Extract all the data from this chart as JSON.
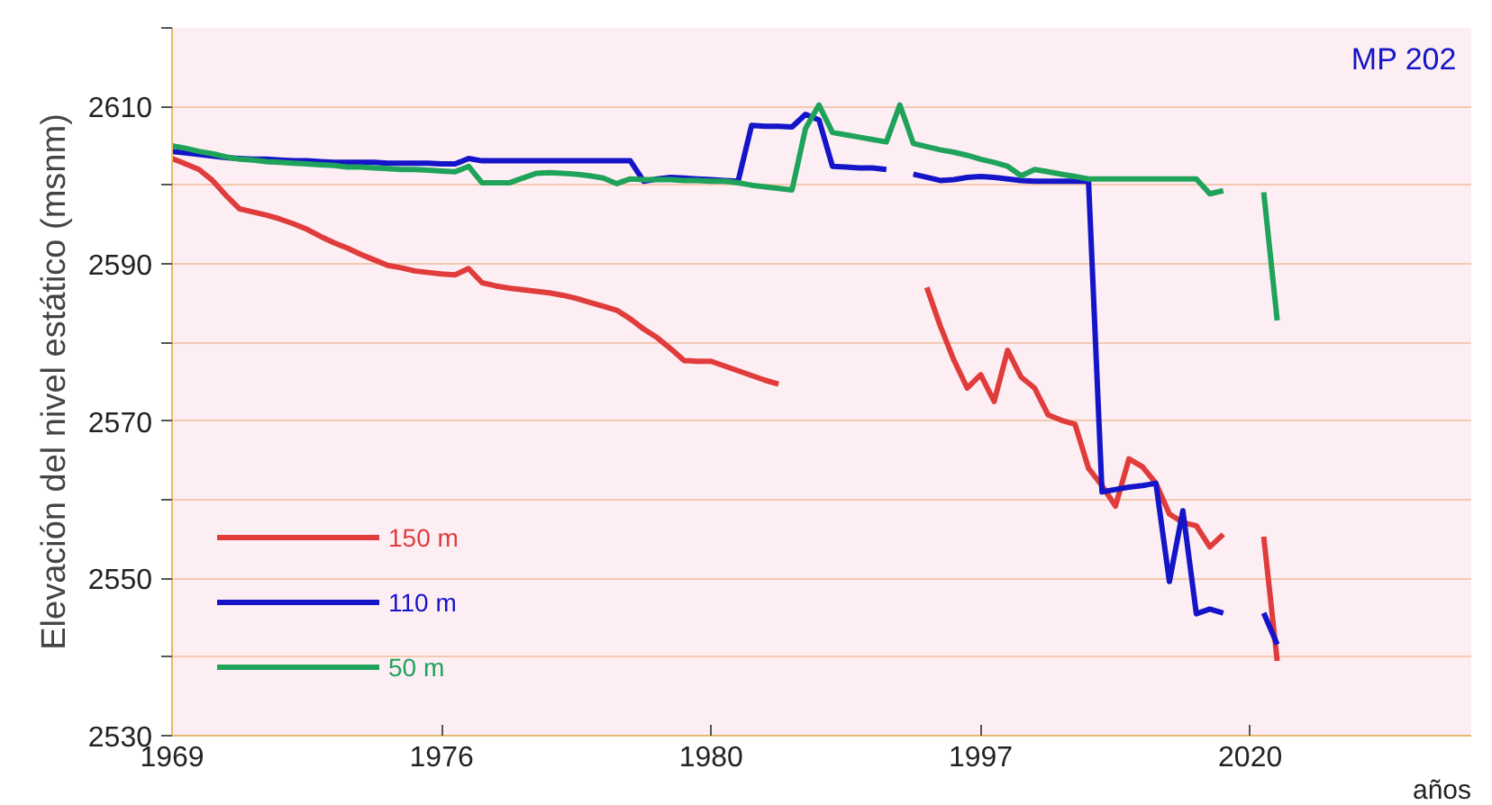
{
  "chart_data": {
    "type": "line",
    "ylabel": "Elevación del nivel estático (msnm)",
    "xlabel": "años",
    "annotations": [
      "MP 202"
    ],
    "categories": [
      "1969",
      null,
      null,
      null,
      null,
      null,
      null,
      null,
      null,
      null,
      null,
      null,
      null,
      null,
      null,
      null,
      null,
      null,
      null,
      null,
      "1976",
      null,
      null,
      null,
      null,
      null,
      null,
      null,
      null,
      null,
      null,
      null,
      null,
      null,
      null,
      null,
      null,
      null,
      null,
      null,
      "1980",
      null,
      null,
      null,
      null,
      null,
      null,
      null,
      null,
      null,
      null,
      null,
      null,
      null,
      null,
      null,
      null,
      null,
      null,
      null,
      "1997",
      null,
      null,
      null,
      null,
      null,
      null,
      null,
      null,
      null,
      null,
      null,
      null,
      null,
      null,
      null,
      null,
      null,
      null,
      null,
      "2020",
      null,
      null,
      null,
      null,
      null,
      null,
      null,
      null,
      null,
      null,
      null,
      null,
      null,
      null,
      null,
      null
    ],
    "ylim": [
      2530,
      2620
    ],
    "yticks": [
      2530,
      {
        "value": 2540,
        "label": null
      },
      2550,
      {
        "value": 2560,
        "label": null
      },
      2570,
      {
        "value": 2580,
        "label": null
      },
      2590,
      {
        "value": 2600,
        "label": null
      },
      2610,
      {
        "value": 2620,
        "label": null
      }
    ],
    "grid": "y",
    "legend": "bottom left",
    "line_style": "solid",
    "series": [
      {
        "name": "150 m",
        "color": "#e03c3c",
        "values": [
          2603.4,
          2602.7,
          2602.0,
          2600.6,
          2598.7,
          2597.0,
          2596.6,
          2596.2,
          2595.7,
          2595.1,
          2594.4,
          2593.5,
          2592.7,
          2592.0,
          2591.2,
          2590.5,
          2589.8,
          2589.5,
          2589.1,
          2588.9,
          2588.7,
          2588.6,
          2589.4,
          2587.6,
          2587.2,
          2586.9,
          2586.7,
          2586.5,
          2586.3,
          2586.0,
          2585.6,
          2585.1,
          2584.6,
          2584.1,
          2583.0,
          2581.7,
          2580.6,
          2579.2,
          2577.7,
          2577.6,
          2577.6,
          2577.0,
          2576.4,
          2575.8,
          2575.2,
          2574.7,
          null,
          null,
          null,
          null,
          null,
          null,
          null,
          null,
          null,
          null,
          2587,
          2582.1,
          2577.8,
          2574.2,
          2575.9,
          2572.5,
          2579.0,
          2575.6,
          2574.2,
          2570.8,
          2570.1,
          2569.6,
          2564.0,
          2561.8,
          2559.2,
          2565.2,
          2564.2,
          2562.1,
          2558.2,
          2557.1,
          2556.7,
          2554.0,
          2555.6,
          null,
          null,
          2555.3,
          2539.5,
          null,
          null,
          null,
          null,
          null,
          null,
          null,
          null,
          null,
          null,
          null,
          null,
          null,
          null
        ]
      },
      {
        "name": "110 m",
        "color": "#1414c8",
        "values": [
          2604.3,
          2604.1,
          2603.9,
          2603.7,
          2603.5,
          2603.4,
          2603.3,
          2603.3,
          2603.2,
          2603.1,
          2603.1,
          2603.0,
          2602.9,
          2602.9,
          2602.9,
          2602.9,
          2602.8,
          2602.8,
          2602.8,
          2602.8,
          2602.7,
          2602.7,
          2603.4,
          2603.1,
          2603.1,
          2603.1,
          2603.1,
          2603.1,
          2603.1,
          2603.1,
          2603.1,
          2603.1,
          2603.1,
          2603.1,
          2603.1,
          2600.5,
          2600.8,
          2601.0,
          2600.9,
          2600.8,
          2600.7,
          2600.6,
          2600.5,
          2607.6,
          2607.5,
          2607.5,
          2607.4,
          2609.0,
          2608.3,
          2602.4,
          2602.3,
          2602.2,
          2602.2,
          2602.0,
          null,
          2601.4,
          2601.0,
          2600.6,
          2600.7,
          2601.0,
          2601.1,
          2601.0,
          2600.8,
          2600.6,
          2600.5,
          2600.5,
          2600.5,
          2600.5,
          2600.5,
          2561,
          2561.3,
          2561.6,
          2561.8,
          2562.1,
          2549.6,
          2558.6,
          2545.5,
          2546.1,
          2545.6,
          null,
          null,
          2545.6,
          2541.6,
          null,
          null,
          null,
          null,
          null,
          null,
          null,
          null,
          null,
          null,
          null,
          null,
          null,
          null
        ]
      },
      {
        "name": "50 m",
        "color": "#1fa35a",
        "values": [
          2605,
          2604.7,
          2604.3,
          2604.0,
          2603.6,
          2603.3,
          2603.2,
          2603.0,
          2602.9,
          2602.8,
          2602.7,
          2602.6,
          2602.5,
          2602.3,
          2602.3,
          2602.2,
          2602.1,
          2602.0,
          2602.0,
          2601.9,
          2601.8,
          2601.7,
          2602.4,
          2600.3,
          2600.3,
          2600.3,
          2600.9,
          2601.5,
          2601.6,
          2601.5,
          2601.4,
          2601.2,
          2600.9,
          2600.2,
          2600.8,
          2600.7,
          2600.7,
          2600.7,
          2600.6,
          2600.6,
          2600.5,
          2600.5,
          2600.3,
          2600.0,
          2599.8,
          2599.6,
          2599.4,
          2607.2,
          2610.2,
          2606.7,
          2606.4,
          2606.1,
          2605.8,
          2605.5,
          2610.2,
          2605.3,
          2604.9,
          2604.5,
          2604.2,
          2603.8,
          2603.3,
          2602.9,
          2602.4,
          2601.2,
          2602.0,
          2601.7,
          2601.4,
          2601.1,
          2600.8,
          2600.8,
          2600.8,
          2600.8,
          2600.8,
          2600.8,
          2600.8,
          2600.8,
          2600.8,
          2598.9,
          2599.3,
          null,
          null,
          2599.1,
          2582.8,
          null,
          null,
          null,
          null,
          null,
          null,
          null,
          null,
          null,
          null,
          null,
          null,
          null,
          null
        ]
      }
    ]
  }
}
